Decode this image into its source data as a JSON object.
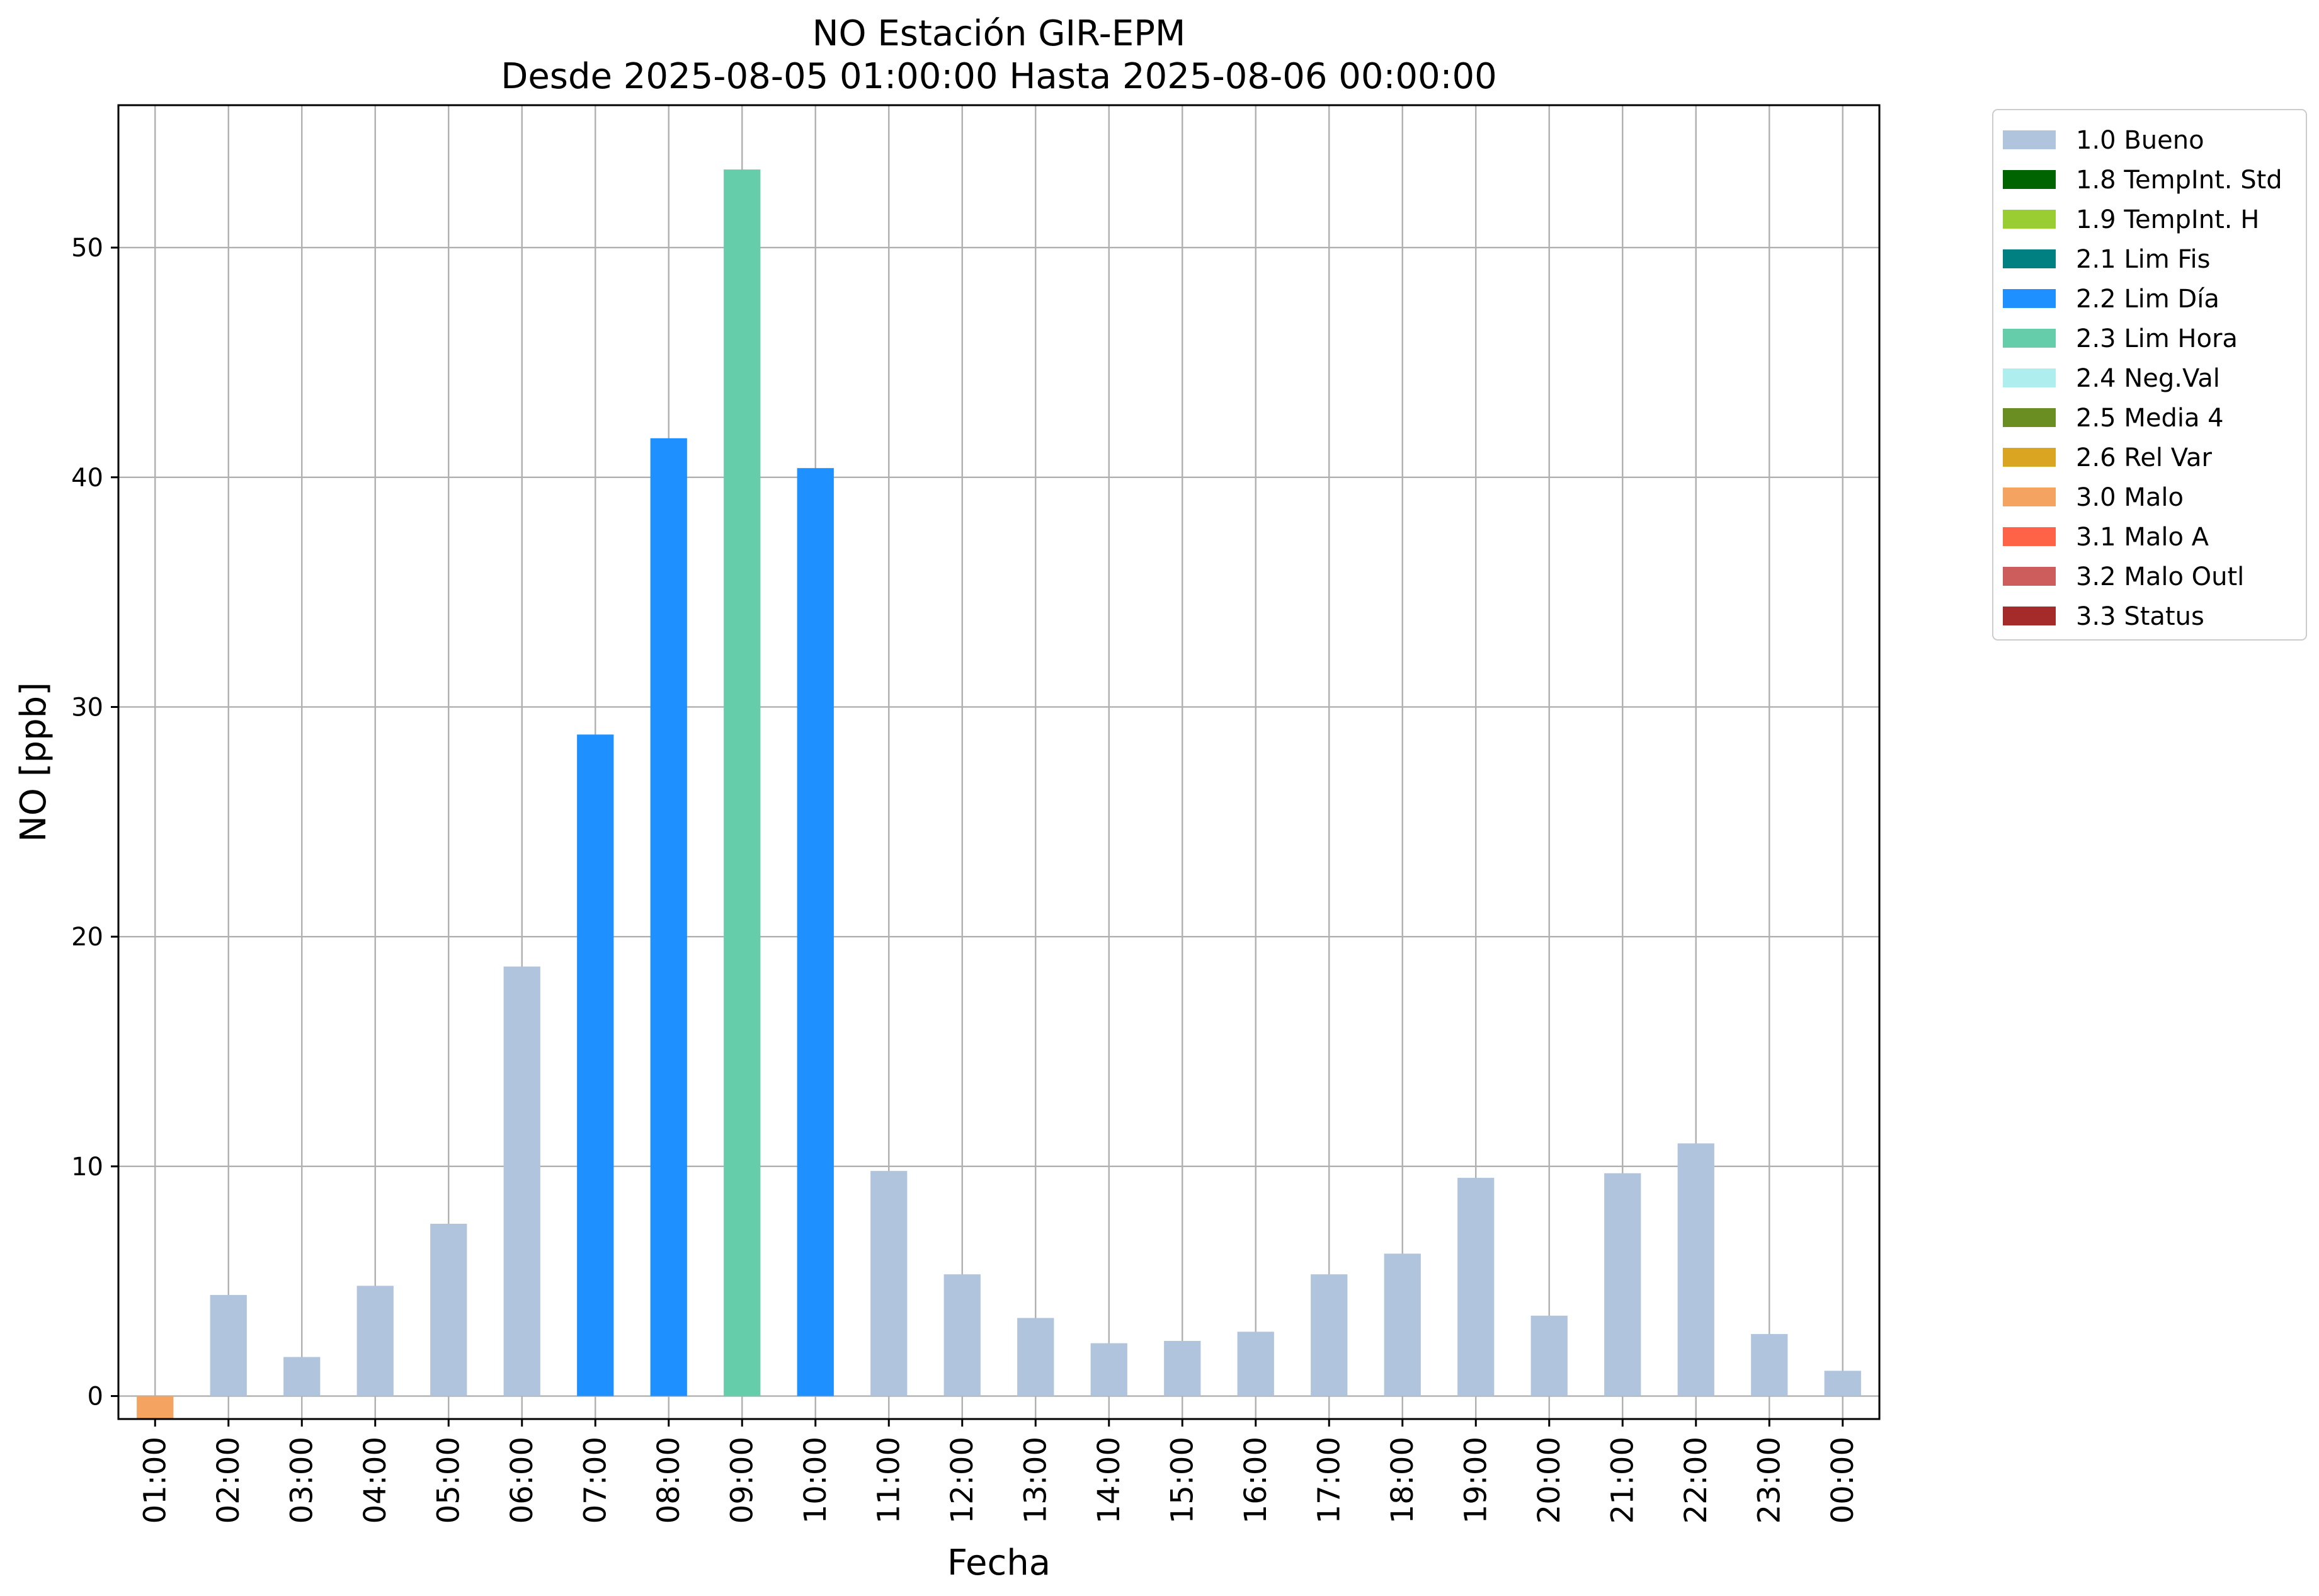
{
  "chart_data": {
    "type": "bar",
    "title": "NO Estación GIR-EPM",
    "subtitle": "Desde 2025-08-05 01:00:00 Hasta 2025-08-06 00:00:00",
    "xlabel": "Fecha",
    "ylabel": "NO [ppb]",
    "ylim": [
      -1,
      56.2
    ],
    "yticks": [
      0,
      10,
      20,
      30,
      40,
      50
    ],
    "grid": true,
    "legend_position": "outside top-right",
    "categories": [
      "01:00",
      "02:00",
      "03:00",
      "04:00",
      "05:00",
      "06:00",
      "07:00",
      "08:00",
      "09:00",
      "10:00",
      "11:00",
      "12:00",
      "13:00",
      "14:00",
      "15:00",
      "16:00",
      "17:00",
      "18:00",
      "19:00",
      "20:00",
      "21:00",
      "22:00",
      "23:00",
      "00:00"
    ],
    "values": [
      -1.0,
      4.4,
      1.7,
      4.8,
      7.5,
      18.7,
      28.8,
      41.7,
      53.4,
      40.4,
      9.8,
      5.3,
      3.4,
      2.3,
      2.4,
      2.8,
      5.3,
      6.2,
      9.5,
      3.5,
      9.7,
      11.0,
      2.7,
      1.1
    ],
    "bar_flags": [
      "3.0 Malo",
      "1.0 Bueno",
      "1.0 Bueno",
      "1.0 Bueno",
      "1.0 Bueno",
      "1.0 Bueno",
      "2.2 Lim Día",
      "2.2 Lim Día",
      "2.3 Lim Hora",
      "2.2 Lim Día",
      "1.0 Bueno",
      "1.0 Bueno",
      "1.0 Bueno",
      "1.0 Bueno",
      "1.0 Bueno",
      "1.0 Bueno",
      "1.0 Bueno",
      "1.0 Bueno",
      "1.0 Bueno",
      "1.0 Bueno",
      "1.0 Bueno",
      "1.0 Bueno",
      "1.0 Bueno",
      "1.0 Bueno"
    ],
    "legend": [
      {
        "label": "1.0 Bueno",
        "color": "#b0c4de"
      },
      {
        "label": "1.8 TempInt. Std",
        "color": "#006400"
      },
      {
        "label": "1.9 TempInt. H",
        "color": "#9acd32"
      },
      {
        "label": "2.1 Lim Fis",
        "color": "#008080"
      },
      {
        "label": "2.2 Lim Día",
        "color": "#1e90ff"
      },
      {
        "label": "2.3 Lim Hora",
        "color": "#66cdaa"
      },
      {
        "label": "2.4 Neg.Val",
        "color": "#afeeee"
      },
      {
        "label": "2.5 Media 4",
        "color": "#6b8e23"
      },
      {
        "label": "2.6 Rel Var",
        "color": "#daa520"
      },
      {
        "label": "3.0 Malo",
        "color": "#f4a460"
      },
      {
        "label": "3.1 Malo A",
        "color": "#ff6347"
      },
      {
        "label": "3.2 Malo Outl",
        "color": "#cd5c5c"
      },
      {
        "label": "3.3 Status",
        "color": "#a52a2a"
      }
    ]
  }
}
